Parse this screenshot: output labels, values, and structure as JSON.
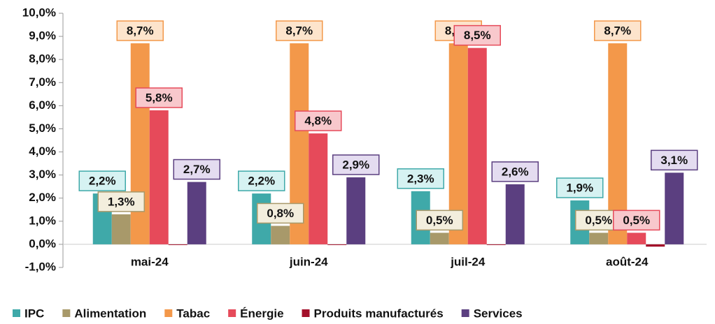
{
  "chart_data": {
    "type": "bar",
    "categories": [
      "mai-24",
      "juin-24",
      "juil-24",
      "août-24"
    ],
    "series": [
      {
        "name": "IPC",
        "color": "#3fa9a9",
        "label_fill": "#d6f2f2",
        "values": [
          2.2,
          2.2,
          2.3,
          1.9
        ],
        "value_labels": [
          "2,2%",
          "2,2%",
          "2,3%",
          "1,9%"
        ]
      },
      {
        "name": "Alimentation",
        "color": "#a8996a",
        "label_fill": "#f3eedd",
        "values": [
          1.3,
          0.8,
          0.5,
          0.5
        ],
        "value_labels": [
          "1,3%",
          "0,8%",
          "0,5%",
          "0,5%"
        ]
      },
      {
        "name": "Tabac",
        "color": "#f3984a",
        "label_fill": "#fde4cc",
        "values": [
          8.7,
          8.7,
          8.7,
          8.7
        ],
        "value_labels": [
          "8,7%",
          "8,7%",
          "8,7%",
          "8,7%"
        ]
      },
      {
        "name": "Énergie",
        "color": "#e64a5a",
        "label_fill": "#f8c8cc",
        "values": [
          5.8,
          4.8,
          8.5,
          0.5
        ],
        "value_labels": [
          "5,8%",
          "4,8%",
          "8,5%",
          "0,5%"
        ]
      },
      {
        "name": "Produits manufacturés",
        "color": "#a3102a",
        "label_fill": "#f8c8cc",
        "values": [
          0,
          0,
          0,
          -0.1
        ],
        "value_labels": [
          null,
          null,
          null,
          null
        ]
      },
      {
        "name": "Services",
        "color": "#5b3f80",
        "label_fill": "#e4dcf0",
        "values": [
          2.7,
          2.9,
          2.6,
          3.1
        ],
        "value_labels": [
          "2,7%",
          "2,9%",
          "2,6%",
          "3,1%"
        ]
      }
    ],
    "ylim": [
      -1,
      10
    ],
    "yticks": [
      {
        "value": -1,
        "label": "-1,0%"
      },
      {
        "value": 0,
        "label": "0,0%"
      },
      {
        "value": 1,
        "label": "1,0%"
      },
      {
        "value": 2,
        "label": "2,0%"
      },
      {
        "value": 3,
        "label": "3,0%"
      },
      {
        "value": 4,
        "label": "4,0%"
      },
      {
        "value": 5,
        "label": "5,0%"
      },
      {
        "value": 6,
        "label": "6,0%"
      },
      {
        "value": 7,
        "label": "7,0%"
      },
      {
        "value": 8,
        "label": "8,0%"
      },
      {
        "value": 9,
        "label": "9,0%"
      },
      {
        "value": 10,
        "label": "10,0%"
      }
    ]
  }
}
